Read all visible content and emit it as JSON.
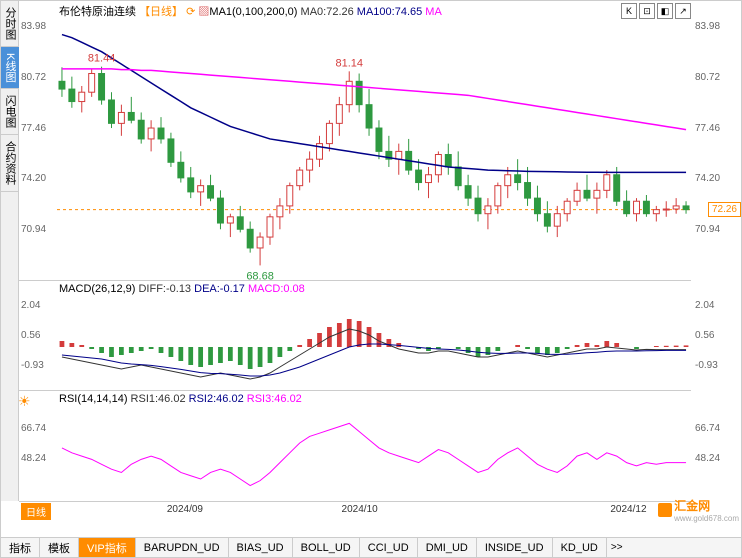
{
  "sidebar": {
    "items": [
      {
        "label": "分时图",
        "active": false
      },
      {
        "label": "K线图",
        "active": true
      },
      {
        "label": "闪电图",
        "active": false
      },
      {
        "label": "合约资料",
        "active": false
      }
    ]
  },
  "main_chart": {
    "title": "布伦特原油连续",
    "timeframe": "【日线】",
    "ma_config": "MA1(0,100,200,0)",
    "ma0_label": "MA0:72.26",
    "ma100_label": "MA100:74.65",
    "ma_extra": "MA",
    "title_color": "#333333",
    "timeframe_color": "#ff8c00",
    "ma100_color": "#000088",
    "ma200_color": "#ff00ff",
    "ylim": [
      68,
      84.5
    ],
    "yticks": [
      70.94,
      74.2,
      77.46,
      80.72,
      83.98
    ],
    "high_label": {
      "value": "81.44",
      "color": "#d43c3c"
    },
    "high_label2": {
      "value": "81.14",
      "color": "#d43c3c"
    },
    "low_label": {
      "value": "68.68",
      "color": "#2e9940"
    },
    "current_price": "72.26",
    "current_price_color": "#ff8c00",
    "candles": [
      {
        "o": 80.5,
        "h": 81.4,
        "l": 79.5,
        "c": 80.0
      },
      {
        "o": 80.0,
        "h": 80.8,
        "l": 78.8,
        "c": 79.2
      },
      {
        "o": 79.2,
        "h": 80.2,
        "l": 78.5,
        "c": 79.8
      },
      {
        "o": 79.8,
        "h": 81.3,
        "l": 79.5,
        "c": 81.0
      },
      {
        "o": 81.0,
        "h": 81.44,
        "l": 79.0,
        "c": 79.3
      },
      {
        "o": 79.3,
        "h": 79.8,
        "l": 77.5,
        "c": 77.8
      },
      {
        "o": 77.8,
        "h": 79.0,
        "l": 77.0,
        "c": 78.5
      },
      {
        "o": 78.5,
        "h": 79.5,
        "l": 77.8,
        "c": 78.0
      },
      {
        "o": 78.0,
        "h": 78.5,
        "l": 76.5,
        "c": 76.8
      },
      {
        "o": 76.8,
        "h": 78.0,
        "l": 76.0,
        "c": 77.5
      },
      {
        "o": 77.5,
        "h": 78.2,
        "l": 76.5,
        "c": 76.8
      },
      {
        "o": 76.8,
        "h": 77.2,
        "l": 75.0,
        "c": 75.3
      },
      {
        "o": 75.3,
        "h": 76.0,
        "l": 74.0,
        "c": 74.3
      },
      {
        "o": 74.3,
        "h": 75.0,
        "l": 73.0,
        "c": 73.4
      },
      {
        "o": 73.4,
        "h": 74.2,
        "l": 72.5,
        "c": 73.8
      },
      {
        "o": 73.8,
        "h": 74.5,
        "l": 72.8,
        "c": 73.0
      },
      {
        "o": 73.0,
        "h": 73.5,
        "l": 71.0,
        "c": 71.4
      },
      {
        "o": 71.4,
        "h": 72.0,
        "l": 70.5,
        "c": 71.8
      },
      {
        "o": 71.8,
        "h": 72.5,
        "l": 70.8,
        "c": 71.0
      },
      {
        "o": 71.0,
        "h": 71.5,
        "l": 69.5,
        "c": 69.8
      },
      {
        "o": 69.8,
        "h": 70.8,
        "l": 68.68,
        "c": 70.5
      },
      {
        "o": 70.5,
        "h": 72.0,
        "l": 70.0,
        "c": 71.8
      },
      {
        "o": 71.8,
        "h": 73.0,
        "l": 71.0,
        "c": 72.5
      },
      {
        "o": 72.5,
        "h": 74.0,
        "l": 72.0,
        "c": 73.8
      },
      {
        "o": 73.8,
        "h": 75.0,
        "l": 73.5,
        "c": 74.8
      },
      {
        "o": 74.8,
        "h": 76.0,
        "l": 74.0,
        "c": 75.5
      },
      {
        "o": 75.5,
        "h": 77.0,
        "l": 75.0,
        "c": 76.5
      },
      {
        "o": 76.5,
        "h": 78.0,
        "l": 76.0,
        "c": 77.8
      },
      {
        "o": 77.8,
        "h": 79.5,
        "l": 77.0,
        "c": 79.0
      },
      {
        "o": 79.0,
        "h": 81.14,
        "l": 78.5,
        "c": 80.5
      },
      {
        "o": 80.5,
        "h": 81.0,
        "l": 78.5,
        "c": 79.0
      },
      {
        "o": 79.0,
        "h": 80.0,
        "l": 77.0,
        "c": 77.5
      },
      {
        "o": 77.5,
        "h": 78.0,
        "l": 75.5,
        "c": 76.0
      },
      {
        "o": 76.0,
        "h": 77.0,
        "l": 75.0,
        "c": 75.5
      },
      {
        "o": 75.5,
        "h": 76.5,
        "l": 74.5,
        "c": 76.0
      },
      {
        "o": 76.0,
        "h": 76.8,
        "l": 74.5,
        "c": 74.8
      },
      {
        "o": 74.8,
        "h": 75.5,
        "l": 73.5,
        "c": 74.0
      },
      {
        "o": 74.0,
        "h": 75.0,
        "l": 73.0,
        "c": 74.5
      },
      {
        "o": 74.5,
        "h": 76.0,
        "l": 74.0,
        "c": 75.8
      },
      {
        "o": 75.8,
        "h": 76.5,
        "l": 74.5,
        "c": 75.0
      },
      {
        "o": 75.0,
        "h": 76.0,
        "l": 73.5,
        "c": 73.8
      },
      {
        "o": 73.8,
        "h": 74.5,
        "l": 72.5,
        "c": 73.0
      },
      {
        "o": 73.0,
        "h": 73.8,
        "l": 71.5,
        "c": 72.0
      },
      {
        "o": 72.0,
        "h": 73.0,
        "l": 71.0,
        "c": 72.5
      },
      {
        "o": 72.5,
        "h": 74.0,
        "l": 72.0,
        "c": 73.8
      },
      {
        "o": 73.8,
        "h": 75.0,
        "l": 73.0,
        "c": 74.5
      },
      {
        "o": 74.5,
        "h": 75.5,
        "l": 73.5,
        "c": 74.0
      },
      {
        "o": 74.0,
        "h": 75.0,
        "l": 72.5,
        "c": 73.0
      },
      {
        "o": 73.0,
        "h": 73.8,
        "l": 71.5,
        "c": 72.0
      },
      {
        "o": 72.0,
        "h": 72.8,
        "l": 70.8,
        "c": 71.2
      },
      {
        "o": 71.2,
        "h": 72.5,
        "l": 70.5,
        "c": 72.0
      },
      {
        "o": 72.0,
        "h": 73.0,
        "l": 71.5,
        "c": 72.8
      },
      {
        "o": 72.8,
        "h": 74.0,
        "l": 72.5,
        "c": 73.5
      },
      {
        "o": 73.5,
        "h": 74.5,
        "l": 72.8,
        "c": 73.0
      },
      {
        "o": 73.0,
        "h": 74.0,
        "l": 72.0,
        "c": 73.5
      },
      {
        "o": 73.5,
        "h": 74.8,
        "l": 73.0,
        "c": 74.5
      },
      {
        "o": 74.5,
        "h": 75.0,
        "l": 72.5,
        "c": 72.8
      },
      {
        "o": 72.8,
        "h": 73.5,
        "l": 71.8,
        "c": 72.0
      },
      {
        "o": 72.0,
        "h": 73.0,
        "l": 71.5,
        "c": 72.8
      },
      {
        "o": 72.8,
        "h": 73.2,
        "l": 71.8,
        "c": 72.0
      },
      {
        "o": 72.0,
        "h": 72.5,
        "l": 71.5,
        "c": 72.26
      },
      {
        "o": 72.26,
        "h": 72.8,
        "l": 71.8,
        "c": 72.3
      },
      {
        "o": 72.3,
        "h": 73.0,
        "l": 72.0,
        "c": 72.5
      },
      {
        "o": 72.5,
        "h": 72.8,
        "l": 72.0,
        "c": 72.26
      }
    ],
    "ma100_line": [
      83.5,
      83.3,
      83.0,
      82.7,
      82.4,
      82.0,
      81.6,
      81.2,
      80.8,
      80.4,
      80.0,
      79.6,
      79.2,
      78.8,
      78.5,
      78.2,
      77.9,
      77.6,
      77.4,
      77.2,
      77.0,
      76.8,
      76.7,
      76.6,
      76.5,
      76.4,
      76.3,
      76.2,
      76.1,
      76.0,
      75.9,
      75.8,
      75.7,
      75.6,
      75.5,
      75.4,
      75.3,
      75.2,
      75.1,
      75.0,
      74.95,
      74.9,
      74.85,
      74.8,
      74.78,
      74.76,
      74.74,
      74.72,
      74.71,
      74.7,
      74.69,
      74.68,
      74.67,
      74.665,
      74.66,
      74.655,
      74.652,
      74.651,
      74.65,
      74.65,
      74.65,
      74.65,
      74.65,
      74.65
    ],
    "ma200_line": [
      81.3,
      81.3,
      81.3,
      81.3,
      81.3,
      81.3,
      81.25,
      81.25,
      81.2,
      81.2,
      81.15,
      81.1,
      81.05,
      81.0,
      80.95,
      80.9,
      80.85,
      80.8,
      80.75,
      80.7,
      80.65,
      80.6,
      80.55,
      80.5,
      80.45,
      80.4,
      80.35,
      80.3,
      80.25,
      80.2,
      80.15,
      80.1,
      80.05,
      80.0,
      79.95,
      79.9,
      79.85,
      79.8,
      79.75,
      79.7,
      79.65,
      79.6,
      79.5,
      79.4,
      79.3,
      79.2,
      79.1,
      79.0,
      78.9,
      78.8,
      78.7,
      78.6,
      78.5,
      78.4,
      78.3,
      78.2,
      78.1,
      78.0,
      77.9,
      77.8,
      77.7,
      77.6,
      77.5,
      77.4
    ]
  },
  "macd_panel": {
    "label": "MACD(26,12,9)",
    "diff_label": "DIFF:-0.13",
    "dea_label": "DEA:-0.17",
    "macd_label": "MACD:0.08",
    "diff_color": "#333333",
    "dea_color": "#000088",
    "macd_color": "#ff00ff",
    "ylim": [
      -2.0,
      2.5
    ],
    "yticks": [
      -0.93,
      0.56,
      2.04
    ],
    "histogram": [
      0.3,
      0.2,
      0.1,
      -0.1,
      -0.3,
      -0.5,
      -0.4,
      -0.3,
      -0.2,
      -0.1,
      -0.3,
      -0.5,
      -0.7,
      -0.9,
      -1.0,
      -0.9,
      -0.8,
      -0.7,
      -0.9,
      -1.1,
      -1.0,
      -0.8,
      -0.5,
      -0.2,
      0.1,
      0.4,
      0.7,
      1.0,
      1.2,
      1.4,
      1.3,
      1.0,
      0.7,
      0.4,
      0.2,
      0.0,
      -0.1,
      -0.2,
      -0.1,
      0.0,
      -0.1,
      -0.3,
      -0.5,
      -0.4,
      -0.2,
      0.0,
      0.1,
      -0.1,
      -0.3,
      -0.4,
      -0.3,
      -0.1,
      0.1,
      0.2,
      0.1,
      0.3,
      0.2,
      0.0,
      -0.1,
      0.0,
      0.05,
      0.06,
      0.07,
      0.08
    ],
    "diff_line": [
      -0.5,
      -0.6,
      -0.7,
      -0.8,
      -0.9,
      -1.0,
      -1.1,
      -1.0,
      -0.9,
      -1.0,
      -1.1,
      -1.2,
      -1.3,
      -1.4,
      -1.5,
      -1.4,
      -1.3,
      -1.4,
      -1.5,
      -1.6,
      -1.5,
      -1.3,
      -1.0,
      -0.7,
      -0.4,
      -0.1,
      0.2,
      0.5,
      0.7,
      0.9,
      0.8,
      0.6,
      0.3,
      0.1,
      -0.1,
      -0.2,
      -0.3,
      -0.3,
      -0.2,
      -0.2,
      -0.3,
      -0.4,
      -0.5,
      -0.5,
      -0.4,
      -0.3,
      -0.2,
      -0.3,
      -0.4,
      -0.5,
      -0.4,
      -0.3,
      -0.2,
      -0.1,
      -0.1,
      0.0,
      -0.05,
      -0.1,
      -0.15,
      -0.12,
      -0.13,
      -0.13,
      -0.13,
      -0.13
    ],
    "dea_line": [
      -0.4,
      -0.45,
      -0.5,
      -0.55,
      -0.6,
      -0.7,
      -0.8,
      -0.85,
      -0.88,
      -0.92,
      -0.98,
      -1.05,
      -1.12,
      -1.2,
      -1.28,
      -1.32,
      -1.33,
      -1.36,
      -1.4,
      -1.45,
      -1.45,
      -1.4,
      -1.3,
      -1.15,
      -1.0,
      -0.8,
      -0.6,
      -0.4,
      -0.2,
      0.0,
      0.1,
      0.15,
      0.15,
      0.12,
      0.08,
      0.03,
      -0.02,
      -0.07,
      -0.1,
      -0.12,
      -0.15,
      -0.2,
      -0.26,
      -0.3,
      -0.32,
      -0.32,
      -0.3,
      -0.3,
      -0.32,
      -0.36,
      -0.37,
      -0.36,
      -0.33,
      -0.29,
      -0.26,
      -0.22,
      -0.2,
      -0.2,
      -0.2,
      -0.19,
      -0.18,
      -0.17,
      -0.17,
      -0.17
    ]
  },
  "rsi_panel": {
    "label": "RSI(14,14,14)",
    "rsi1_label": "RSI1:46.02",
    "rsi2_label": "RSI2:46.02",
    "rsi3_label": "RSI3:46.02",
    "rsi1_color": "#333333",
    "rsi2_color": "#000088",
    "rsi3_color": "#ff00ff",
    "ylim": [
      25,
      80
    ],
    "yticks": [
      48.24,
      66.74
    ],
    "line": [
      55,
      52,
      50,
      48,
      45,
      42,
      40,
      45,
      48,
      50,
      48,
      44,
      40,
      38,
      36,
      40,
      42,
      40,
      36,
      32,
      35,
      40,
      46,
      52,
      58,
      62,
      64,
      66,
      68,
      70,
      65,
      60,
      55,
      52,
      50,
      48,
      46,
      50,
      54,
      52,
      48,
      44,
      40,
      42,
      48,
      52,
      55,
      50,
      45,
      42,
      40,
      44,
      50,
      52,
      48,
      52,
      50,
      46,
      44,
      46,
      45,
      46,
      46,
      46.02
    ]
  },
  "time_axis": {
    "timeframe": "日线",
    "labels": [
      {
        "pos": 0.22,
        "text": "2024/09"
      },
      {
        "pos": 0.48,
        "text": "2024/10"
      },
      {
        "pos": 0.88,
        "text": "2024/12"
      }
    ]
  },
  "logo": {
    "text": "汇金网",
    "url": "www.gold678.com"
  },
  "bottom_tabs": {
    "items": [
      {
        "label": "指标",
        "type": "normal"
      },
      {
        "label": "模板",
        "type": "normal"
      },
      {
        "label": "VIP指标",
        "type": "vip"
      },
      {
        "label": "BARUPDN_UD",
        "type": "normal"
      },
      {
        "label": "BIAS_UD",
        "type": "normal"
      },
      {
        "label": "BOLL_UD",
        "type": "normal"
      },
      {
        "label": "CCI_UD",
        "type": "normal"
      },
      {
        "label": "DMI_UD",
        "type": "normal"
      },
      {
        "label": "INSIDE_UD",
        "type": "normal"
      },
      {
        "label": "KD_UD",
        "type": "normal"
      }
    ]
  },
  "top_controls": [
    "K",
    "⊡",
    "◧",
    "↗"
  ]
}
